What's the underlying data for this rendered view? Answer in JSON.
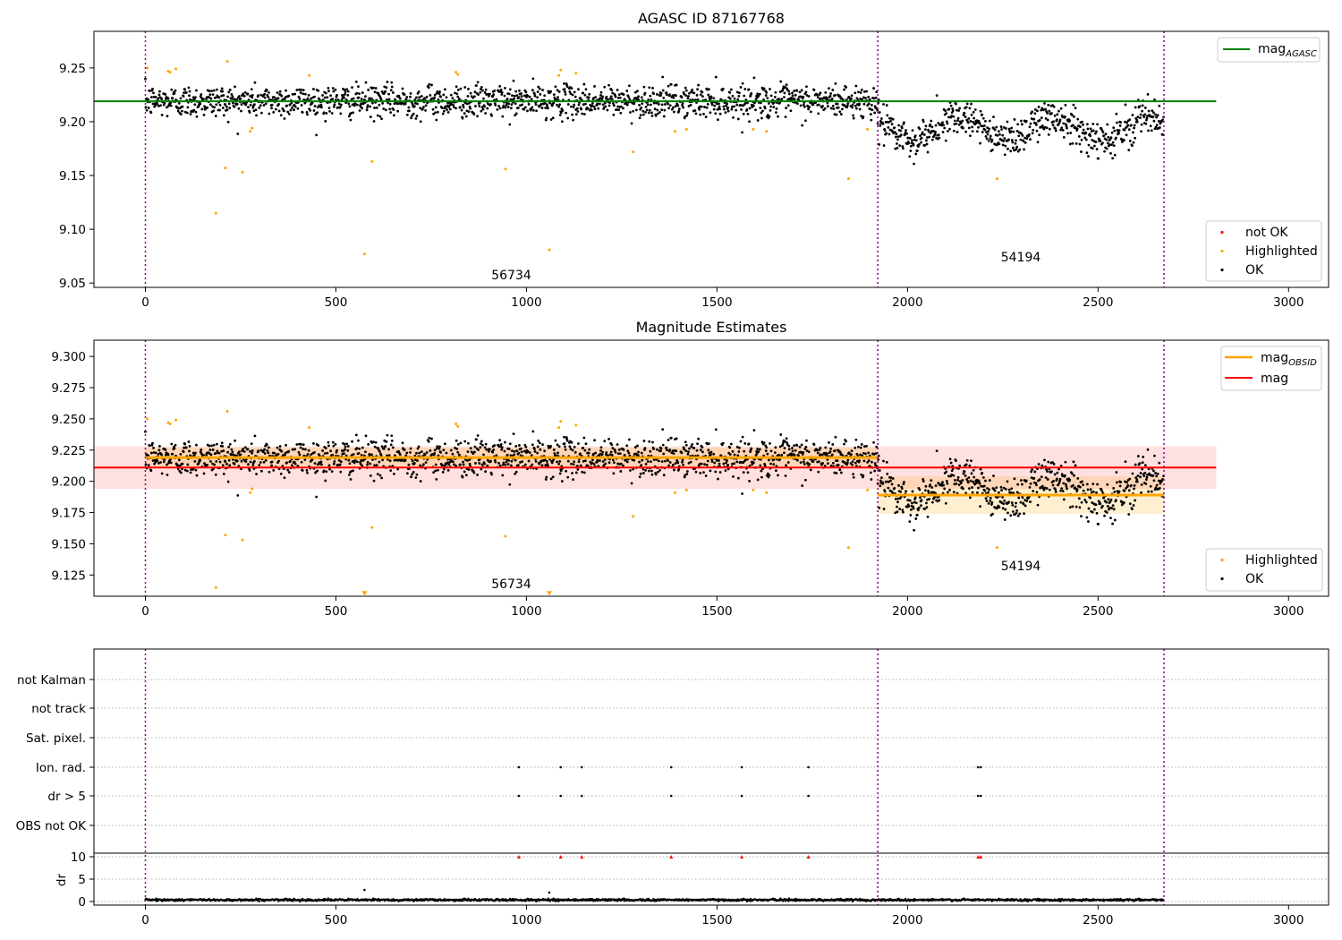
{
  "chart_data": [
    {
      "type": "scatter",
      "title": "AGASC ID 87167768",
      "xlim": [
        -135,
        3105
      ],
      "ylim": [
        9.046,
        9.284
      ],
      "xticks": [
        0,
        500,
        1000,
        1500,
        2000,
        2500,
        3000
      ],
      "yticks": [
        9.05,
        9.1,
        9.15,
        9.2,
        9.25
      ],
      "ytick_labels": [
        "9.05",
        "9.10",
        "9.15",
        "9.20",
        "9.25"
      ],
      "lines": [
        {
          "name": "mag",
          "subscript": "AGASC",
          "color": "#008000",
          "y": 9.219,
          "x_range": [
            -135,
            2810
          ]
        }
      ],
      "obs_boundaries": [
        0,
        1922,
        2673
      ],
      "boundary_color": "#800080",
      "annotations": [
        {
          "text": "56734",
          "x": 960,
          "y": 9.055
        },
        {
          "text": "54194",
          "x": 2280,
          "y": 9.073
        }
      ],
      "legend_points": [
        {
          "name": "not OK",
          "color": "#ff0000"
        },
        {
          "name": "Highlighted",
          "color": "#ffa500"
        },
        {
          "name": "OK",
          "color": "#000000"
        }
      ],
      "highlighted_points": [
        [
          5,
          9.25
        ],
        [
          60,
          9.247
        ],
        [
          65,
          9.246
        ],
        [
          80,
          9.249
        ],
        [
          185,
          9.115
        ],
        [
          210,
          9.157
        ],
        [
          215,
          9.256
        ],
        [
          255,
          9.153
        ],
        [
          275,
          9.191
        ],
        [
          280,
          9.194
        ],
        [
          430,
          9.243
        ],
        [
          575,
          9.077
        ],
        [
          595,
          9.163
        ],
        [
          815,
          9.246
        ],
        [
          820,
          9.244
        ],
        [
          945,
          9.156
        ],
        [
          1060,
          9.081
        ],
        [
          1085,
          9.243
        ],
        [
          1090,
          9.248
        ],
        [
          1130,
          9.245
        ],
        [
          1280,
          9.172
        ],
        [
          1390,
          9.191
        ],
        [
          1420,
          9.193
        ],
        [
          1595,
          9.193
        ],
        [
          1630,
          9.191
        ],
        [
          1845,
          9.147
        ],
        [
          1895,
          9.193
        ],
        [
          2235,
          9.147
        ]
      ],
      "ok_segments": [
        {
          "x_range": [
            0,
            1922
          ],
          "base": 9.219,
          "noise": 0.0075
        },
        {
          "x_range": [
            1922,
            2673
          ],
          "base": 9.189,
          "noise": 0.008,
          "wave_amp": 0.02,
          "wave_period": 250
        }
      ]
    },
    {
      "type": "scatter",
      "title": "Magnitude Estimates",
      "xlim": [
        -135,
        3105
      ],
      "ylim": [
        9.108,
        9.313
      ],
      "xticks": [
        0,
        500,
        1000,
        1500,
        2000,
        2500,
        3000
      ],
      "yticks": [
        9.125,
        9.15,
        9.175,
        9.2,
        9.225,
        9.25,
        9.275,
        9.3
      ],
      "ytick_labels": [
        "9.125",
        "9.150",
        "9.175",
        "9.200",
        "9.225",
        "9.250",
        "9.275",
        "9.300"
      ],
      "lines": [
        {
          "name": "mag",
          "subscript": "OBSID",
          "color": "#ffa500",
          "segments": [
            {
              "x_range": [
                0,
                1922
              ],
              "y": 9.219,
              "band": [
                9.211,
                9.227
              ]
            },
            {
              "x_range": [
                1922,
                2673
              ],
              "y": 9.189,
              "band": [
                9.174,
                9.204
              ]
            }
          ]
        },
        {
          "name": "mag",
          "subscript": "",
          "color": "#ff0000",
          "y": 9.211,
          "band": [
            9.194,
            9.228
          ],
          "x_range": [
            -135,
            2810
          ]
        }
      ],
      "obs_boundaries": [
        0,
        1922,
        2673
      ],
      "annotations": [
        {
          "text": "56734",
          "x": 960,
          "y": 9.116
        },
        {
          "text": "54194",
          "x": 2280,
          "y": 9.131
        }
      ],
      "legend_points": [
        {
          "name": "Highlighted",
          "color": "#ffa500"
        },
        {
          "name": "OK",
          "color": "#000000"
        }
      ],
      "clipped_markers": [
        [
          575,
          9.11
        ],
        [
          1060,
          9.11
        ]
      ]
    },
    {
      "type": "scatter",
      "title": "",
      "xlim": [
        -135,
        3105
      ],
      "xticks": [
        0,
        500,
        1000,
        1500,
        2000,
        2500,
        3000
      ],
      "flag_rows": [
        "not Kalman",
        "not track",
        "Sat. pixel.",
        "Ion. rad.",
        "dr > 5",
        "OBS not OK"
      ],
      "flag_points": {
        "Ion. rad.": [
          980,
          1090,
          1145,
          1380,
          1565,
          1740,
          2185,
          2192
        ],
        "dr > 5": [
          980,
          1090,
          1145,
          1380,
          1565,
          1740,
          2185,
          2192
        ]
      },
      "dr_ylabel": "dr",
      "dr_yticks": [
        0,
        5,
        10
      ],
      "dr_ylim": [
        -0.8,
        10.8
      ],
      "dr_red_markers": [
        980,
        1090,
        1145,
        1380,
        1565,
        1740,
        2185,
        2192
      ],
      "dr_outliers": [
        [
          575,
          2.6
        ],
        [
          1060,
          2.0
        ]
      ],
      "obs_boundaries": [
        0,
        1922,
        2673
      ]
    }
  ]
}
